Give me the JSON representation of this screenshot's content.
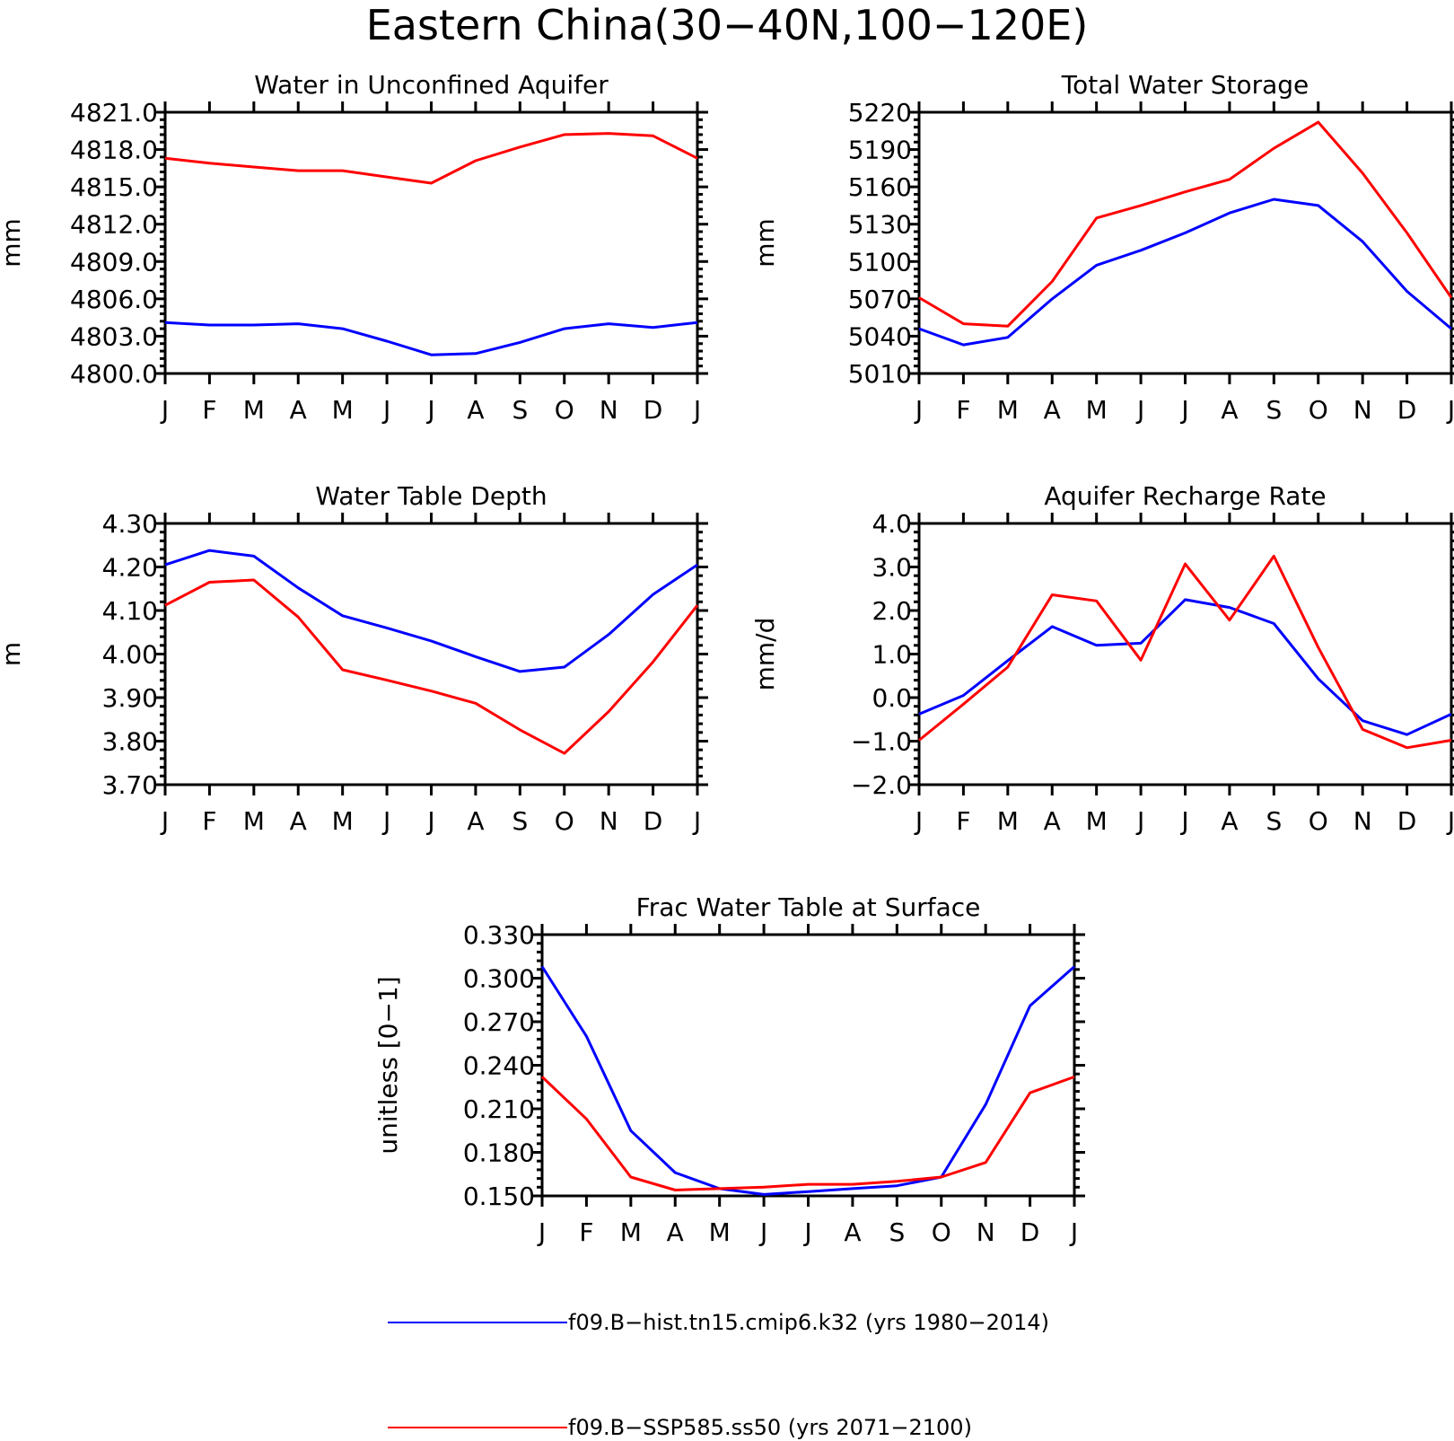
{
  "figure": {
    "title": "Eastern China(30−40N,100−120E)"
  },
  "colors": {
    "hist": "#0000ff",
    "ssp": "#ff0000"
  },
  "legend": [
    {
      "label": "f09.B−hist.tn15.cmip6.k32 (yrs 1980−2014)",
      "color": "#0000ff"
    },
    {
      "label": "f09.B−SSP585.ss50 (yrs 2071−2100)",
      "color": "#ff0000"
    }
  ],
  "chart_data": [
    {
      "type": "line",
      "title": "Water in Unconfined Aquifer",
      "ylabel": "mm",
      "categories": [
        "J",
        "F",
        "M",
        "A",
        "M",
        "J",
        "J",
        "A",
        "S",
        "O",
        "N",
        "D",
        "J"
      ],
      "ylim": [
        4800,
        4821
      ],
      "yticks": [
        "4800.0",
        "4803.0",
        "4806.0",
        "4809.0",
        "4812.0",
        "4815.0",
        "4818.0",
        "4821.0"
      ],
      "series": [
        {
          "name": "f09.B−hist.tn15.cmip6.k32 (yrs 1980−2014)",
          "color": "#0000ff",
          "values": [
            4804.1,
            4803.9,
            4803.9,
            4804.0,
            4803.6,
            4802.6,
            4801.5,
            4801.6,
            4802.5,
            4803.6,
            4804.0,
            4803.7,
            4804.1
          ]
        },
        {
          "name": "f09.B−SSP585.ss50 (yrs 2071−2100)",
          "color": "#ff0000",
          "values": [
            4817.3,
            4816.9,
            4816.6,
            4816.3,
            4816.3,
            4815.8,
            4815.3,
            4817.1,
            4818.2,
            4819.2,
            4819.3,
            4819.1,
            4817.3
          ]
        }
      ]
    },
    {
      "type": "line",
      "title": "Total Water Storage",
      "ylabel": "mm",
      "categories": [
        "J",
        "F",
        "M",
        "A",
        "M",
        "J",
        "J",
        "A",
        "S",
        "O",
        "N",
        "D",
        "J"
      ],
      "ylim": [
        5010,
        5220
      ],
      "yticks": [
        "5010",
        "5040",
        "5070",
        "5100",
        "5130",
        "5160",
        "5190",
        "5220"
      ],
      "series": [
        {
          "name": "f09.B−hist.tn15.cmip6.k32 (yrs 1980−2014)",
          "color": "#0000ff",
          "values": [
            5046,
            5033,
            5039,
            5070,
            5097,
            5109,
            5123,
            5139,
            5150,
            5145,
            5116,
            5076,
            5046
          ]
        },
        {
          "name": "f09.B−SSP585.ss50 (yrs 2071−2100)",
          "color": "#ff0000",
          "values": [
            5071,
            5050,
            5048,
            5084,
            5135,
            5145,
            5156,
            5166,
            5191,
            5212,
            5171,
            5123,
            5071
          ]
        }
      ]
    },
    {
      "type": "line",
      "title": "Water Table Depth",
      "ylabel": "m",
      "categories": [
        "J",
        "F",
        "M",
        "A",
        "M",
        "J",
        "J",
        "A",
        "S",
        "O",
        "N",
        "D",
        "J"
      ],
      "ylim": [
        3.7,
        4.3
      ],
      "yticks": [
        "3.70",
        "3.80",
        "3.90",
        "4.00",
        "4.10",
        "4.20",
        "4.30"
      ],
      "series": [
        {
          "name": "f09.B−hist.tn15.cmip6.k32 (yrs 1980−2014)",
          "color": "#0000ff",
          "values": [
            4.205,
            4.238,
            4.225,
            4.152,
            4.088,
            4.06,
            4.03,
            3.994,
            3.96,
            3.97,
            4.045,
            4.137,
            4.205
          ]
        },
        {
          "name": "f09.B−SSP585.ss50 (yrs 2071−2100)",
          "color": "#ff0000",
          "values": [
            4.112,
            4.165,
            4.17,
            4.085,
            3.964,
            3.94,
            3.915,
            3.887,
            3.826,
            3.772,
            3.868,
            3.982,
            4.112
          ]
        }
      ]
    },
    {
      "type": "line",
      "title": "Aquifer Recharge Rate",
      "ylabel": "mm/d",
      "categories": [
        "J",
        "F",
        "M",
        "A",
        "M",
        "J",
        "J",
        "A",
        "S",
        "O",
        "N",
        "D",
        "J"
      ],
      "ylim": [
        -2,
        4
      ],
      "yticks": [
        "−2.0",
        "−1.0",
        "0.0",
        "1.0",
        "2.0",
        "3.0",
        "4.0"
      ],
      "series": [
        {
          "name": "f09.B−hist.tn15.cmip6.k32 (yrs 1980−2014)",
          "color": "#0000ff",
          "values": [
            -0.38,
            0.05,
            0.85,
            1.63,
            1.2,
            1.25,
            2.25,
            2.07,
            1.7,
            0.43,
            -0.53,
            -0.85,
            -0.38
          ]
        },
        {
          "name": "f09.B−SSP585.ss50 (yrs 2071−2100)",
          "color": "#ff0000",
          "values": [
            -0.98,
            -0.15,
            0.7,
            2.36,
            2.22,
            0.86,
            3.07,
            1.78,
            3.25,
            1.15,
            -0.73,
            -1.15,
            -0.98
          ]
        }
      ]
    },
    {
      "type": "line",
      "title": "Frac Water Table at Surface",
      "ylabel": "unitless [0−1]",
      "categories": [
        "J",
        "F",
        "M",
        "A",
        "M",
        "J",
        "J",
        "A",
        "S",
        "O",
        "N",
        "D",
        "J"
      ],
      "ylim": [
        0.15,
        0.33
      ],
      "yticks": [
        "0.150",
        "0.180",
        "0.210",
        "0.240",
        "0.270",
        "0.300",
        "0.330"
      ],
      "series": [
        {
          "name": "f09.B−hist.tn15.cmip6.k32 (yrs 1980−2014)",
          "color": "#0000ff",
          "values": [
            0.308,
            0.26,
            0.195,
            0.166,
            0.155,
            0.151,
            0.153,
            0.155,
            0.157,
            0.163,
            0.213,
            0.281,
            0.308
          ]
        },
        {
          "name": "f09.B−SSP585.ss50 (yrs 2071−2100)",
          "color": "#ff0000",
          "values": [
            0.232,
            0.203,
            0.163,
            0.154,
            0.155,
            0.156,
            0.158,
            0.158,
            0.16,
            0.163,
            0.173,
            0.221,
            0.232
          ]
        }
      ]
    }
  ]
}
